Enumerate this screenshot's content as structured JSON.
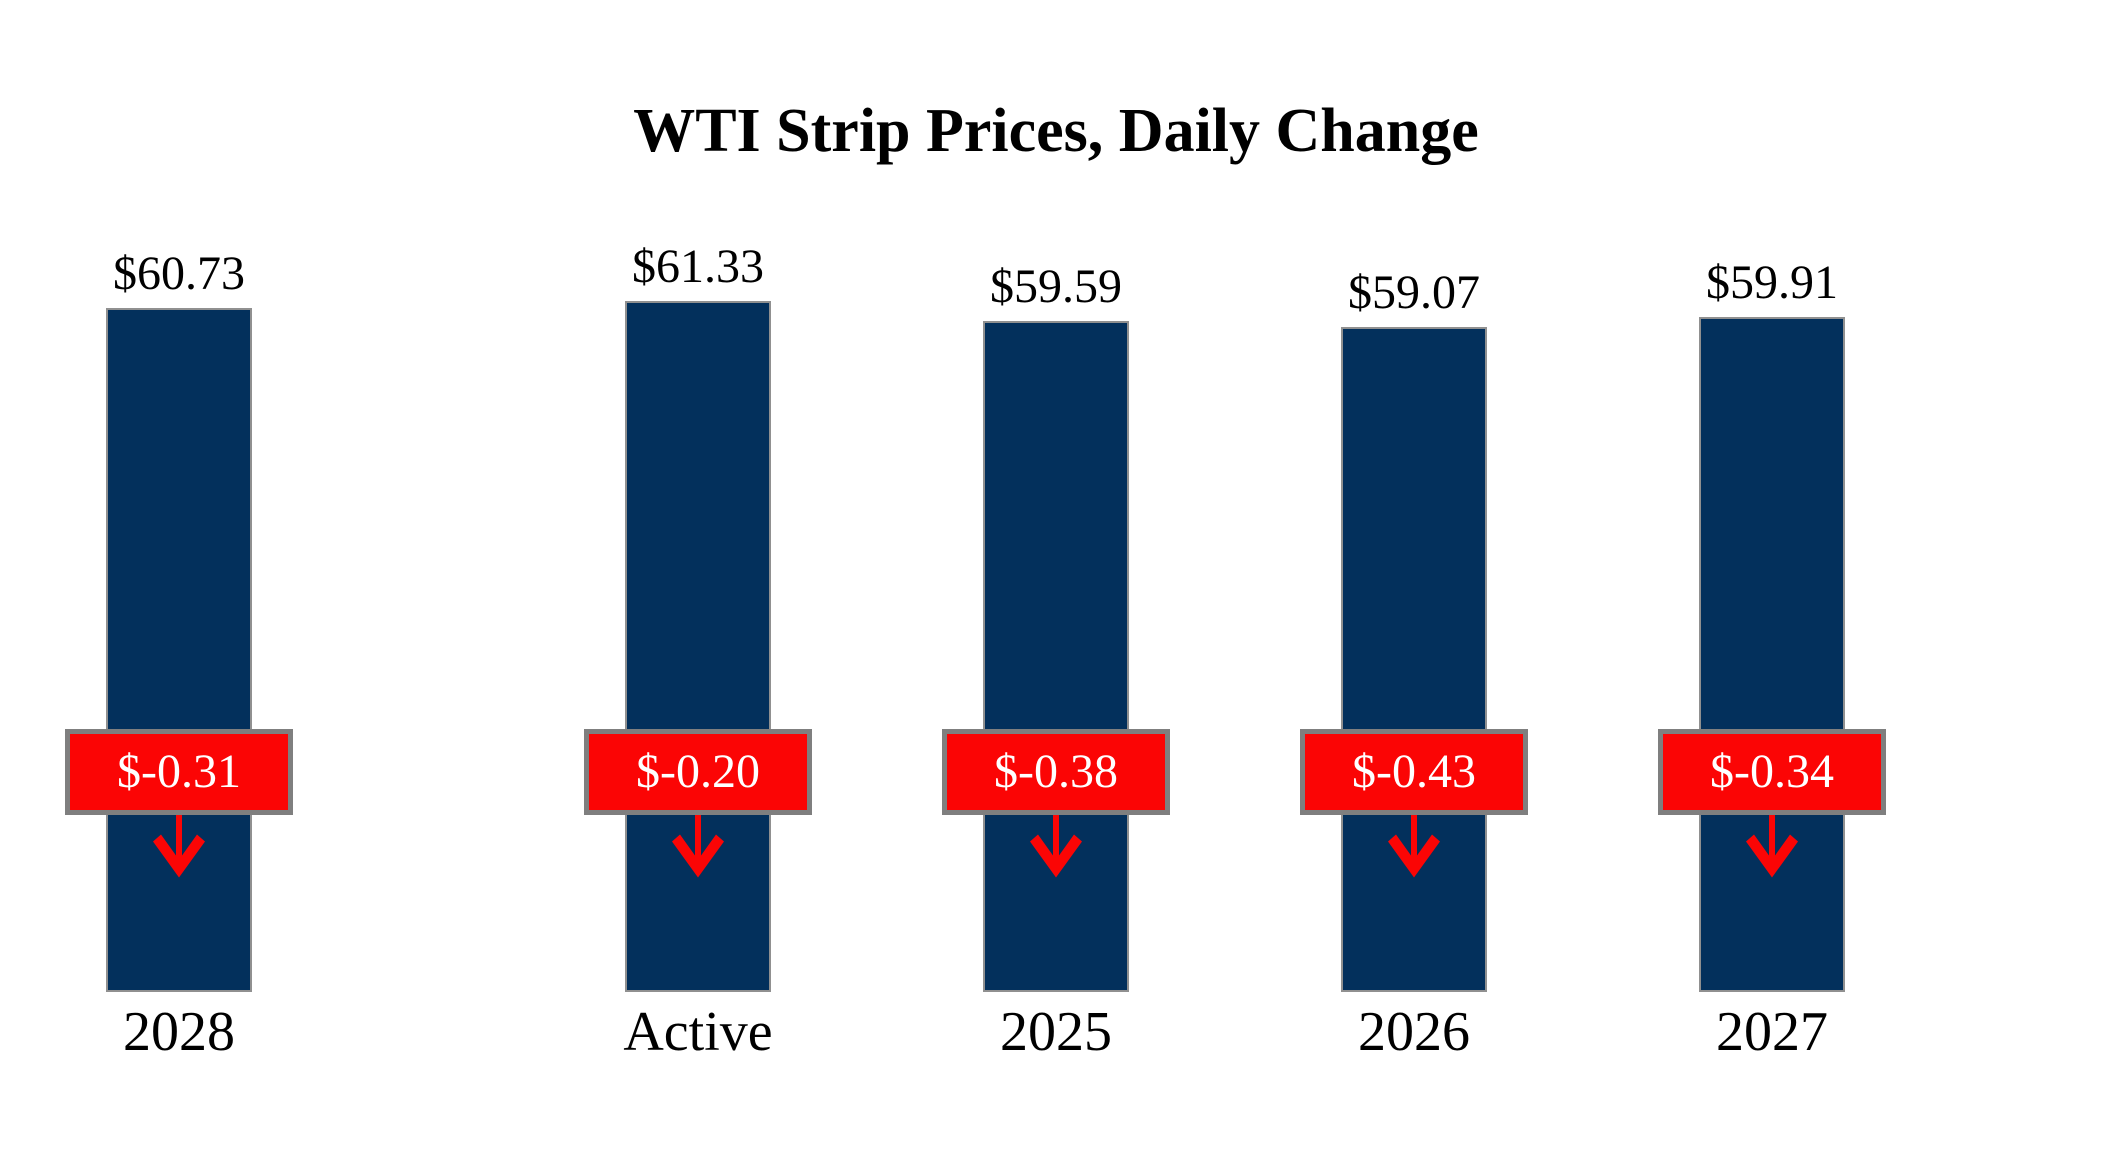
{
  "page": {
    "background": "#FFFFFF"
  },
  "chart_data": {
    "type": "bar",
    "title": "WTI Strip Prices, Daily Change",
    "categories": [
      "Active",
      "2025",
      "2026",
      "2027",
      "2028"
    ],
    "series": [
      {
        "name": "Strip Price",
        "values": [
          61.33,
          59.59,
          59.07,
          59.91,
          60.73
        ]
      },
      {
        "name": "Daily Change",
        "values": [
          -0.2,
          -0.38,
          -0.43,
          -0.34,
          -0.31
        ]
      }
    ],
    "value_labels": [
      "$61.33",
      "$59.59",
      "$59.07",
      "$59.91",
      "$60.73"
    ],
    "change_labels": [
      "$-0.20",
      "$-0.38",
      "$-0.43",
      "$-0.34",
      "$-0.31"
    ],
    "ylim": [
      0,
      62
    ],
    "grid": false,
    "legend": "none",
    "axis_ticks_visible": false,
    "colors": {
      "bar_fill": "#03305C",
      "bar_border": "#909090",
      "badge_fill": "#FB0505",
      "badge_border": "#7F7F7F",
      "badge_text": "#FFFFFF",
      "arrow": "#FB0505",
      "label_text": "#000000"
    }
  }
}
